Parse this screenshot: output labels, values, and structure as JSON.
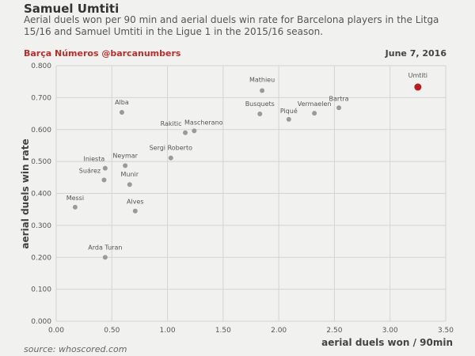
{
  "header": {
    "title": "Samuel Umtiti",
    "subtitle": "Aerial duels won per 90 min and aerial duels win rate for Barcelona players in the Litga 15/16 and Samuel Umtiti in the Ligue 1 in the 2015/16 season.",
    "brand": "Barça Números @barcanumbers",
    "date": "June 7, 2016"
  },
  "footer": {
    "source": "source: whoscored.com"
  },
  "colors": {
    "point": "#9a9a9a",
    "highlight": "#b91c1c",
    "grid": "#d4d4d2"
  },
  "chart_data": {
    "type": "scatter",
    "xlabel": "aerial duels won / 90min",
    "ylabel": "aerial duels win rate",
    "xlim": [
      0,
      3.5
    ],
    "ylim": [
      0,
      0.8
    ],
    "xticks": [
      "0.00",
      "0.50",
      "1.00",
      "1.50",
      "2.00",
      "2.50",
      "3.00",
      "3.50"
    ],
    "yticks": [
      "0.000",
      "0.100",
      "0.200",
      "0.300",
      "0.400",
      "0.500",
      "0.600",
      "0.700",
      "0.800"
    ],
    "grid": true,
    "points": [
      {
        "name": "Umtiti",
        "x": 3.25,
        "y": 0.733,
        "highlight": true
      },
      {
        "name": "Mathieu",
        "x": 1.85,
        "y": 0.722
      },
      {
        "name": "Bartra",
        "x": 2.54,
        "y": 0.668
      },
      {
        "name": "Vermaelen",
        "x": 2.32,
        "y": 0.651
      },
      {
        "name": "Busquets",
        "x": 1.83,
        "y": 0.649
      },
      {
        "name": "Piqué",
        "x": 2.09,
        "y": 0.632
      },
      {
        "name": "Alba",
        "x": 0.59,
        "y": 0.654
      },
      {
        "name": "Mascherano",
        "x": 1.24,
        "y": 0.596
      },
      {
        "name": "Rakitic",
        "x": 1.16,
        "y": 0.59
      },
      {
        "name": "Sergi Roberto",
        "x": 1.03,
        "y": 0.511
      },
      {
        "name": "Neymar",
        "x": 0.62,
        "y": 0.487
      },
      {
        "name": "Iniesta",
        "x": 0.44,
        "y": 0.479
      },
      {
        "name": "Suárez",
        "x": 0.43,
        "y": 0.442
      },
      {
        "name": "Munir",
        "x": 0.66,
        "y": 0.428
      },
      {
        "name": "Messi",
        "x": 0.17,
        "y": 0.357
      },
      {
        "name": "Alves",
        "x": 0.71,
        "y": 0.345
      },
      {
        "name": "Arda Turan",
        "x": 0.44,
        "y": 0.2
      }
    ]
  }
}
